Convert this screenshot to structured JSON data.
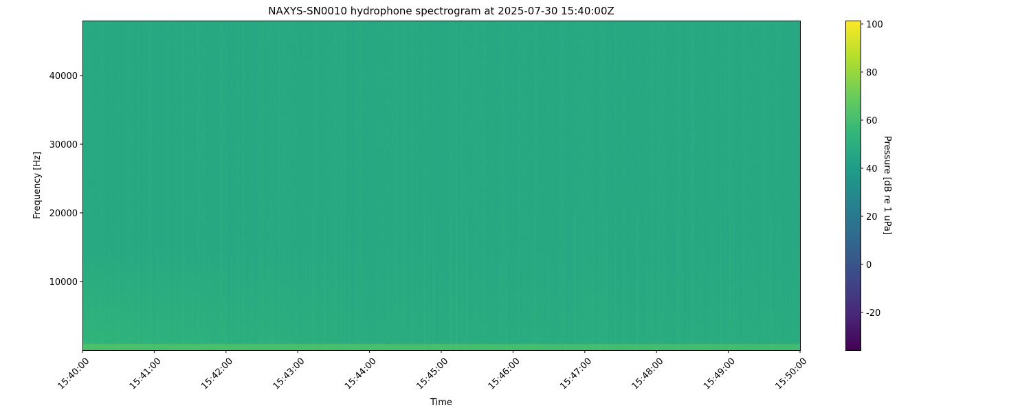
{
  "chart_data": {
    "type": "heatmap",
    "title": "NAXYS-SN0010 hydrophone spectrogram at 2025-07-30 15:40:00Z",
    "xlabel": "Time",
    "ylabel": "Frequency [Hz]",
    "x_ticks": [
      "15:40:00",
      "15:41:00",
      "15:42:00",
      "15:43:00",
      "15:44:00",
      "15:45:00",
      "15:46:00",
      "15:47:00",
      "15:48:00",
      "15:49:00",
      "15:50:00"
    ],
    "xlim": [
      "15:40:00",
      "15:50:00"
    ],
    "y_ticks": [
      10000,
      20000,
      30000,
      40000
    ],
    "ylim": [
      0,
      48000
    ],
    "colormap": "viridis",
    "colorbar": {
      "label": "Pressure [dB re 1 uPa]",
      "ticks": [
        -20,
        0,
        20,
        40,
        60,
        80,
        100
      ],
      "range": [
        -35.7,
        101.4
      ]
    },
    "levels": {
      "background_db": 47,
      "low_frequency_band_hz": [
        0,
        1000
      ],
      "low_frequency_band_db": 62,
      "elevated_region_hz": [
        1000,
        15000
      ],
      "elevated_region_db": 52
    },
    "grid": false,
    "legend": "none"
  }
}
